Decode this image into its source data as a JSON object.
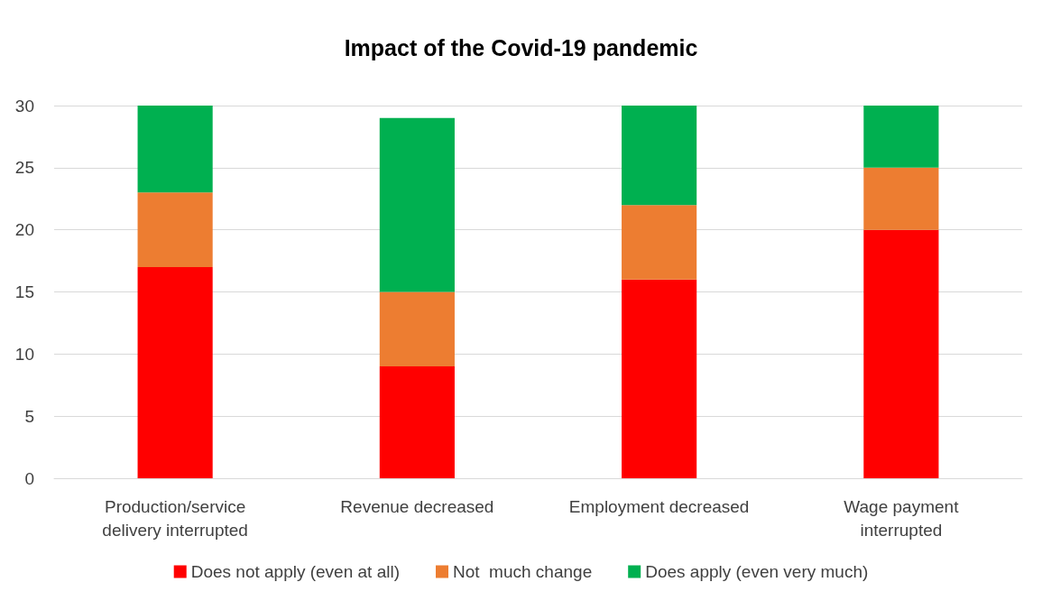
{
  "chart_data": {
    "type": "bar",
    "title": "Impact of the Covid-19 pandemic",
    "stacked": true,
    "categories": [
      "Production/service\ndelivery interrupted",
      "Revenue decreased",
      "Employment decreased",
      "Wage payment\ninterrupted"
    ],
    "series": [
      {
        "name": "Does not apply (even at all)",
        "color": "#ff0000",
        "values": [
          17,
          9,
          16,
          20
        ]
      },
      {
        "name": "Not  much change",
        "color": "#ed7d31",
        "values": [
          6,
          6,
          6,
          5
        ]
      },
      {
        "name": "Does apply (even very much)",
        "color": "#00b050",
        "values": [
          7,
          14,
          8,
          5
        ]
      }
    ],
    "ylim": [
      0,
      30
    ],
    "yticks": [
      0,
      5,
      10,
      15,
      20,
      25,
      30
    ],
    "grid": "y",
    "legend": "bottom"
  }
}
